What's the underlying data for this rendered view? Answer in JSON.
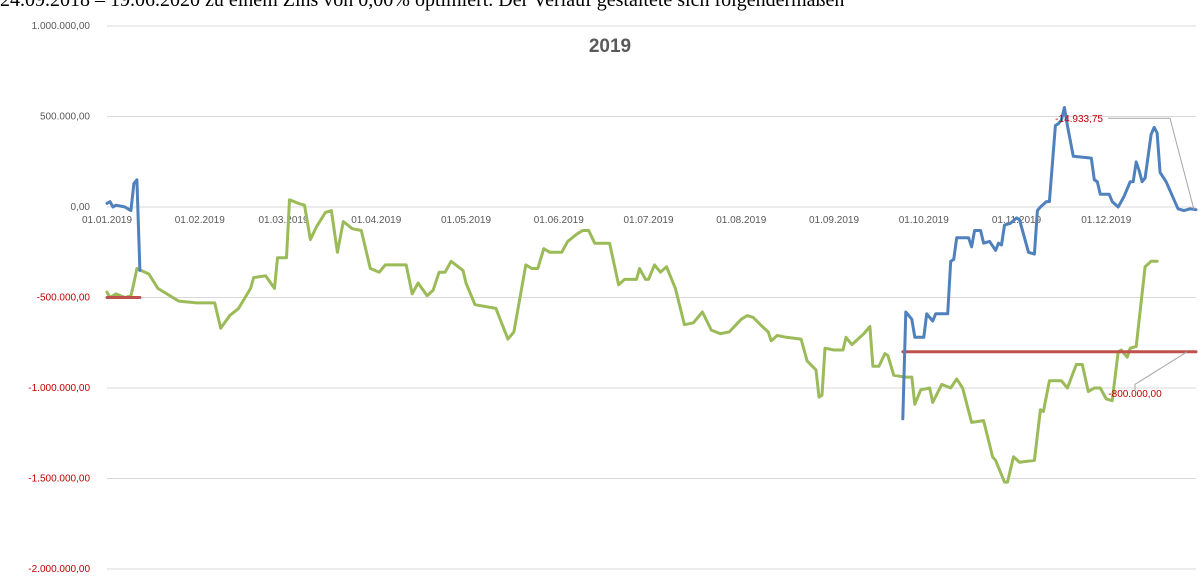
{
  "document": {
    "text_line": "24.09.2018 – 19.06.2020 zu einem Zins von 0,00% optimiert. Der Verlauf gestaltete sich folgendermaßen"
  },
  "chart_data": {
    "type": "line",
    "title": "2019",
    "xlabel": "",
    "ylabel": "",
    "ylim": [
      -2000000,
      1000000
    ],
    "xlim": [
      "2019-01-01",
      "2019-12-31"
    ],
    "yticks": [
      1000000,
      500000,
      0,
      -500000,
      -1000000,
      -1500000,
      -2000000
    ],
    "ytick_labels": [
      "1.000.000,00",
      "500.000,00",
      "0,00",
      "-500.000,00",
      "-1.000.000,00",
      "-1.500.000,00",
      "-2.000.000,00"
    ],
    "xticks": [
      "2019-01-01",
      "2019-02-01",
      "2019-03-01",
      "2019-04-01",
      "2019-05-01",
      "2019-06-01",
      "2019-07-01",
      "2019-08-01",
      "2019-09-01",
      "2019-10-01",
      "2019-11-01",
      "2019-12-01"
    ],
    "xtick_labels": [
      "01.01.2019",
      "01.02.2019",
      "01.03.2019",
      "01.04.2019",
      "01.05.2019",
      "01.06.2019",
      "01.07.2019",
      "01.08.2019",
      "01.09.2019",
      "01.10.2019",
      "01.11.2019",
      "01.12.2019"
    ],
    "grid": true,
    "legend": "none",
    "series": [
      {
        "color": "#4f81bd",
        "points": [
          [
            "2019-01-01",
            20000
          ],
          [
            "2019-01-02",
            30000
          ],
          [
            "2019-01-03",
            0
          ],
          [
            "2019-01-04",
            10000
          ],
          [
            "2019-01-07",
            0
          ],
          [
            "2019-01-09",
            -20000
          ],
          [
            "2019-01-10",
            130000
          ],
          [
            "2019-01-11",
            150000
          ],
          [
            "2019-01-12",
            -350000
          ]
        ],
        "points_2": [
          [
            "2019-09-24",
            -1170000
          ],
          [
            "2019-09-25",
            -580000
          ],
          [
            "2019-09-27",
            -620000
          ],
          [
            "2019-09-28",
            -720000
          ],
          [
            "2019-10-01",
            -720000
          ],
          [
            "2019-10-02",
            -590000
          ],
          [
            "2019-10-04",
            -630000
          ],
          [
            "2019-10-05",
            -590000
          ],
          [
            "2019-10-09",
            -590000
          ],
          [
            "2019-10-10",
            -300000
          ],
          [
            "2019-10-11",
            -290000
          ],
          [
            "2019-10-12",
            -170000
          ],
          [
            "2019-10-16",
            -170000
          ],
          [
            "2019-10-17",
            -220000
          ],
          [
            "2019-10-18",
            -130000
          ],
          [
            "2019-10-20",
            -130000
          ],
          [
            "2019-10-21",
            -200000
          ],
          [
            "2019-10-23",
            -190000
          ],
          [
            "2019-10-25",
            -240000
          ],
          [
            "2019-10-26",
            -200000
          ],
          [
            "2019-10-27",
            -210000
          ],
          [
            "2019-10-28",
            -100000
          ],
          [
            "2019-10-30",
            -90000
          ],
          [
            "2019-11-01",
            -60000
          ],
          [
            "2019-11-02",
            -70000
          ],
          [
            "2019-11-05",
            -250000
          ],
          [
            "2019-11-07",
            -260000
          ],
          [
            "2019-11-08",
            -20000
          ],
          [
            "2019-11-09",
            0
          ],
          [
            "2019-11-11",
            30000
          ],
          [
            "2019-11-12",
            30000
          ],
          [
            "2019-11-14",
            450000
          ],
          [
            "2019-11-15",
            460000
          ],
          [
            "2019-11-16",
            480000
          ],
          [
            "2019-11-17",
            550000
          ],
          [
            "2019-11-18",
            450000
          ],
          [
            "2019-11-20",
            280000
          ],
          [
            "2019-11-26",
            270000
          ],
          [
            "2019-11-27",
            150000
          ],
          [
            "2019-11-28",
            140000
          ],
          [
            "2019-11-29",
            70000
          ],
          [
            "2019-12-02",
            70000
          ],
          [
            "2019-12-03",
            30000
          ],
          [
            "2019-12-05",
            0
          ],
          [
            "2019-12-07",
            60000
          ],
          [
            "2019-12-09",
            140000
          ],
          [
            "2019-12-10",
            140000
          ],
          [
            "2019-12-11",
            250000
          ],
          [
            "2019-12-12",
            200000
          ],
          [
            "2019-12-13",
            140000
          ],
          [
            "2019-12-14",
            160000
          ],
          [
            "2019-12-16",
            400000
          ],
          [
            "2019-12-17",
            440000
          ],
          [
            "2019-12-18",
            410000
          ],
          [
            "2019-12-19",
            190000
          ],
          [
            "2019-12-21",
            140000
          ],
          [
            "2019-12-25",
            -10000
          ],
          [
            "2019-12-27",
            -20000
          ],
          [
            "2019-12-29",
            -10000
          ],
          [
            "2019-12-31",
            -14933.75
          ]
        ]
      },
      {
        "color": "#9bbb59",
        "points": [
          [
            "2019-01-01",
            -470000
          ],
          [
            "2019-01-02",
            -500000
          ],
          [
            "2019-01-04",
            -480000
          ],
          [
            "2019-01-07",
            -500000
          ],
          [
            "2019-01-09",
            -490000
          ],
          [
            "2019-01-10",
            -420000
          ],
          [
            "2019-01-11",
            -340000
          ],
          [
            "2019-01-15",
            -370000
          ],
          [
            "2019-01-18",
            -450000
          ],
          [
            "2019-01-21",
            -480000
          ],
          [
            "2019-01-25",
            -520000
          ],
          [
            "2019-01-31",
            -530000
          ],
          [
            "2019-02-06",
            -530000
          ],
          [
            "2019-02-08",
            -670000
          ],
          [
            "2019-02-11",
            -600000
          ],
          [
            "2019-02-14",
            -560000
          ],
          [
            "2019-02-18",
            -450000
          ],
          [
            "2019-02-19",
            -390000
          ],
          [
            "2019-02-23",
            -380000
          ],
          [
            "2019-02-26",
            -450000
          ],
          [
            "2019-02-27",
            -280000
          ],
          [
            "2019-03-02",
            -280000
          ],
          [
            "2019-03-03",
            40000
          ],
          [
            "2019-03-06",
            20000
          ],
          [
            "2019-03-08",
            10000
          ],
          [
            "2019-03-10",
            -180000
          ],
          [
            "2019-03-12",
            -110000
          ],
          [
            "2019-03-15",
            -30000
          ],
          [
            "2019-03-17",
            -20000
          ],
          [
            "2019-03-19",
            -250000
          ],
          [
            "2019-03-21",
            -80000
          ],
          [
            "2019-03-24",
            -120000
          ],
          [
            "2019-03-27",
            -130000
          ],
          [
            "2019-03-30",
            -340000
          ],
          [
            "2019-04-02",
            -360000
          ],
          [
            "2019-04-04",
            -320000
          ],
          [
            "2019-04-07",
            -320000
          ],
          [
            "2019-04-11",
            -320000
          ],
          [
            "2019-04-13",
            -480000
          ],
          [
            "2019-04-15",
            -420000
          ],
          [
            "2019-04-18",
            -490000
          ],
          [
            "2019-04-20",
            -460000
          ],
          [
            "2019-04-22",
            -360000
          ],
          [
            "2019-04-24",
            -360000
          ],
          [
            "2019-04-26",
            -300000
          ],
          [
            "2019-04-30",
            -350000
          ],
          [
            "2019-05-01",
            -420000
          ],
          [
            "2019-05-04",
            -540000
          ],
          [
            "2019-05-11",
            -560000
          ],
          [
            "2019-05-15",
            -730000
          ],
          [
            "2019-05-17",
            -690000
          ],
          [
            "2019-05-21",
            -320000
          ],
          [
            "2019-05-23",
            -340000
          ],
          [
            "2019-05-25",
            -340000
          ],
          [
            "2019-05-27",
            -230000
          ],
          [
            "2019-05-29",
            -250000
          ],
          [
            "2019-06-02",
            -250000
          ],
          [
            "2019-06-04",
            -190000
          ],
          [
            "2019-06-07",
            -150000
          ],
          [
            "2019-06-09",
            -130000
          ],
          [
            "2019-06-11",
            -130000
          ],
          [
            "2019-06-13",
            -200000
          ],
          [
            "2019-06-18",
            -200000
          ],
          [
            "2019-06-21",
            -430000
          ],
          [
            "2019-06-23",
            -400000
          ],
          [
            "2019-06-27",
            -400000
          ],
          [
            "2019-06-28",
            -340000
          ],
          [
            "2019-06-30",
            -400000
          ],
          [
            "2019-07-01",
            -400000
          ],
          [
            "2019-07-03",
            -320000
          ],
          [
            "2019-07-05",
            -360000
          ],
          [
            "2019-07-07",
            -330000
          ],
          [
            "2019-07-10",
            -450000
          ],
          [
            "2019-07-13",
            -650000
          ],
          [
            "2019-07-16",
            -640000
          ],
          [
            "2019-07-19",
            -580000
          ],
          [
            "2019-07-22",
            -680000
          ],
          [
            "2019-07-25",
            -700000
          ],
          [
            "2019-07-28",
            -690000
          ],
          [
            "2019-08-01",
            -620000
          ],
          [
            "2019-08-03",
            -600000
          ],
          [
            "2019-08-05",
            -610000
          ],
          [
            "2019-08-08",
            -660000
          ],
          [
            "2019-08-10",
            -690000
          ],
          [
            "2019-08-11",
            -740000
          ],
          [
            "2019-08-13",
            -710000
          ],
          [
            "2019-08-16",
            -720000
          ],
          [
            "2019-08-21",
            -730000
          ],
          [
            "2019-08-23",
            -850000
          ],
          [
            "2019-08-26",
            -900000
          ],
          [
            "2019-08-27",
            -1050000
          ],
          [
            "2019-08-28",
            -1040000
          ],
          [
            "2019-08-29",
            -780000
          ],
          [
            "2019-09-01",
            -790000
          ],
          [
            "2019-09-04",
            -790000
          ],
          [
            "2019-09-05",
            -720000
          ],
          [
            "2019-09-07",
            -760000
          ],
          [
            "2019-09-11",
            -700000
          ],
          [
            "2019-09-13",
            -660000
          ],
          [
            "2019-09-14",
            -880000
          ],
          [
            "2019-09-16",
            -880000
          ],
          [
            "2019-09-18",
            -810000
          ],
          [
            "2019-09-19",
            -820000
          ],
          [
            "2019-09-21",
            -930000
          ],
          [
            "2019-09-25",
            -940000
          ],
          [
            "2019-09-27",
            -940000
          ],
          [
            "2019-09-28",
            -1090000
          ],
          [
            "2019-09-30",
            -1010000
          ],
          [
            "2019-10-03",
            -1000000
          ],
          [
            "2019-10-04",
            -1080000
          ],
          [
            "2019-10-07",
            -980000
          ],
          [
            "2019-10-10",
            -1000000
          ],
          [
            "2019-10-12",
            -950000
          ],
          [
            "2019-10-14",
            -1000000
          ],
          [
            "2019-10-17",
            -1190000
          ],
          [
            "2019-10-21",
            -1180000
          ],
          [
            "2019-10-24",
            -1380000
          ],
          [
            "2019-10-25",
            -1400000
          ],
          [
            "2019-10-28",
            -1520000
          ],
          [
            "2019-10-29",
            -1520000
          ],
          [
            "2019-10-31",
            -1380000
          ],
          [
            "2019-11-02",
            -1410000
          ],
          [
            "2019-11-07",
            -1400000
          ],
          [
            "2019-11-09",
            -1120000
          ],
          [
            "2019-11-10",
            -1130000
          ],
          [
            "2019-11-12",
            -960000
          ],
          [
            "2019-11-16",
            -960000
          ],
          [
            "2019-11-18",
            -1000000
          ],
          [
            "2019-11-21",
            -870000
          ],
          [
            "2019-11-23",
            -870000
          ],
          [
            "2019-11-25",
            -1020000
          ],
          [
            "2019-11-27",
            -1000000
          ],
          [
            "2019-11-29",
            -1000000
          ],
          [
            "2019-12-01",
            -1060000
          ],
          [
            "2019-12-03",
            -1070000
          ],
          [
            "2019-12-05",
            -800000
          ],
          [
            "2019-12-06",
            -790000
          ],
          [
            "2019-12-08",
            -830000
          ],
          [
            "2019-12-09",
            -780000
          ],
          [
            "2019-12-11",
            -770000
          ],
          [
            "2019-12-14",
            -330000
          ],
          [
            "2019-12-16",
            -300000
          ],
          [
            "2019-12-18",
            -300000
          ]
        ]
      },
      {
        "color": "#c0504d",
        "segments": [
          [
            [
              "2019-01-01",
              -500000
            ],
            [
              "2019-01-12",
              -500000
            ]
          ],
          [
            [
              "2019-09-24",
              -800000
            ],
            [
              "2019-12-31",
              -800000
            ]
          ]
        ]
      }
    ],
    "annotations": [
      {
        "text": "-14.933,75",
        "date": "2019-12-31",
        "value": -14933.75
      },
      {
        "text": "-800.000,00",
        "date": "2019-12-28",
        "value": -800000
      }
    ]
  }
}
